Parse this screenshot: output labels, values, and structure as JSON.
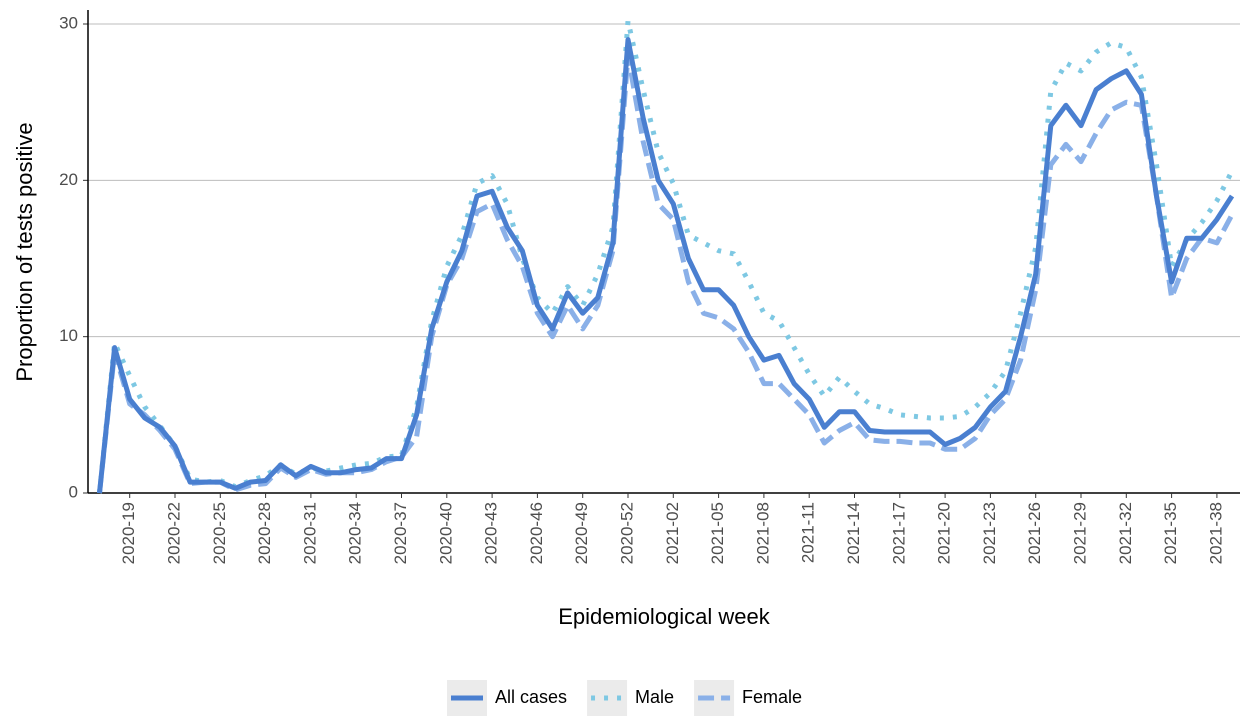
{
  "chart_data": {
    "type": "line",
    "y_label": "Proportion of tests positive",
    "x_label": "Epidemiological week",
    "categories": [
      null,
      null,
      "2020-19",
      null,
      null,
      "2020-22",
      null,
      null,
      "2020-25",
      null,
      null,
      "2020-28",
      null,
      null,
      "2020-31",
      null,
      null,
      "2020-34",
      null,
      null,
      "2020-37",
      null,
      null,
      "2020-40",
      null,
      null,
      "2020-43",
      null,
      null,
      "2020-46",
      null,
      null,
      "2020-49",
      null,
      null,
      "2020-52",
      null,
      null,
      "2021-02",
      null,
      null,
      "2021-05",
      null,
      null,
      "2021-08",
      null,
      null,
      "2021-11",
      null,
      null,
      "2021-14",
      null,
      null,
      "2021-17",
      null,
      null,
      "2021-20",
      null,
      null,
      "2021-23",
      null,
      null,
      "2021-26",
      null,
      null,
      "2021-29",
      null,
      null,
      "2021-32",
      null,
      null,
      "2021-35",
      null,
      null,
      "2021-38",
      null
    ],
    "series": [
      {
        "name": "All cases",
        "color": "#4a7fd0",
        "line_style": "solid",
        "values": [
          0,
          9.3,
          6,
          4.8,
          4.2,
          3,
          0.7,
          0.7,
          0.7,
          0.3,
          0.7,
          0.8,
          1.8,
          1.1,
          1.7,
          1.3,
          1.3,
          1.5,
          1.6,
          2.2,
          2.2,
          5,
          10.5,
          13.5,
          15.5,
          19,
          19.3,
          17,
          15.5,
          12,
          10.5,
          12.8,
          11.5,
          12.5,
          16,
          29,
          24,
          20,
          18.5,
          15,
          13,
          13,
          12,
          10,
          8.5,
          8.8,
          7,
          6,
          4.2,
          5.2,
          5.2,
          4,
          3.9,
          3.9,
          3.9,
          3.9,
          3.1,
          3.5,
          4.2,
          5.5,
          6.5,
          10,
          14,
          23.5,
          24.8,
          23.5,
          25.8,
          26.5,
          27,
          25.5,
          19,
          13.5,
          16.3,
          16.3,
          17.5,
          19
        ]
      },
      {
        "name": "Male",
        "color": "#7ec8e3",
        "line_style": "dotted",
        "values": [
          0,
          9.6,
          7.5,
          5.5,
          4.3,
          3,
          0.9,
          0.7,
          0.8,
          0.4,
          0.8,
          1.1,
          1.8,
          1.2,
          1.6,
          1.4,
          1.6,
          1.8,
          1.9,
          2.3,
          2.4,
          5.5,
          11,
          14.5,
          16.5,
          19.8,
          20.3,
          18.5,
          15,
          12.5,
          11.5,
          13.2,
          12,
          14,
          17,
          30.2,
          25.8,
          21.8,
          19.8,
          16.5,
          16,
          15.5,
          15.3,
          13.5,
          11.5,
          11,
          9.3,
          7.6,
          6.2,
          7.4,
          6.5,
          5.7,
          5.4,
          5,
          4.9,
          4.8,
          4.8,
          4.9,
          5.5,
          6.4,
          7.8,
          11.5,
          15.7,
          25.7,
          27.5,
          27,
          28.2,
          28.8,
          28.5,
          26.6,
          21,
          14.5,
          16.2,
          17.3,
          18.7,
          20.6
        ]
      },
      {
        "name": "Female",
        "color": "#8ab0e8",
        "line_style": "dashed",
        "values": [
          0,
          9,
          5.7,
          5,
          4,
          2.8,
          0.6,
          0.7,
          0.7,
          0.2,
          0.5,
          0.6,
          1.6,
          1,
          1.5,
          1.2,
          1.3,
          1.3,
          1.5,
          2,
          2.3,
          3.6,
          10,
          13.3,
          15,
          18,
          18.5,
          16.2,
          14.5,
          11.5,
          10,
          12,
          10.5,
          12,
          15.5,
          28,
          22.5,
          18.5,
          17.5,
          13.5,
          11.5,
          11.2,
          10.5,
          9,
          7,
          7,
          6,
          5,
          3.2,
          4,
          4.5,
          3.4,
          3.3,
          3.3,
          3.2,
          3.2,
          2.8,
          2.8,
          3.5,
          5,
          6,
          8.5,
          13,
          21,
          22.3,
          21.2,
          23,
          24.5,
          25,
          24.8,
          19,
          12.5,
          15,
          16.3,
          16,
          17.8
        ]
      }
    ],
    "ylim": [
      0,
      30
    ],
    "yticks": [
      0,
      10,
      20,
      30
    ],
    "grid": true,
    "legend": "bottom"
  }
}
